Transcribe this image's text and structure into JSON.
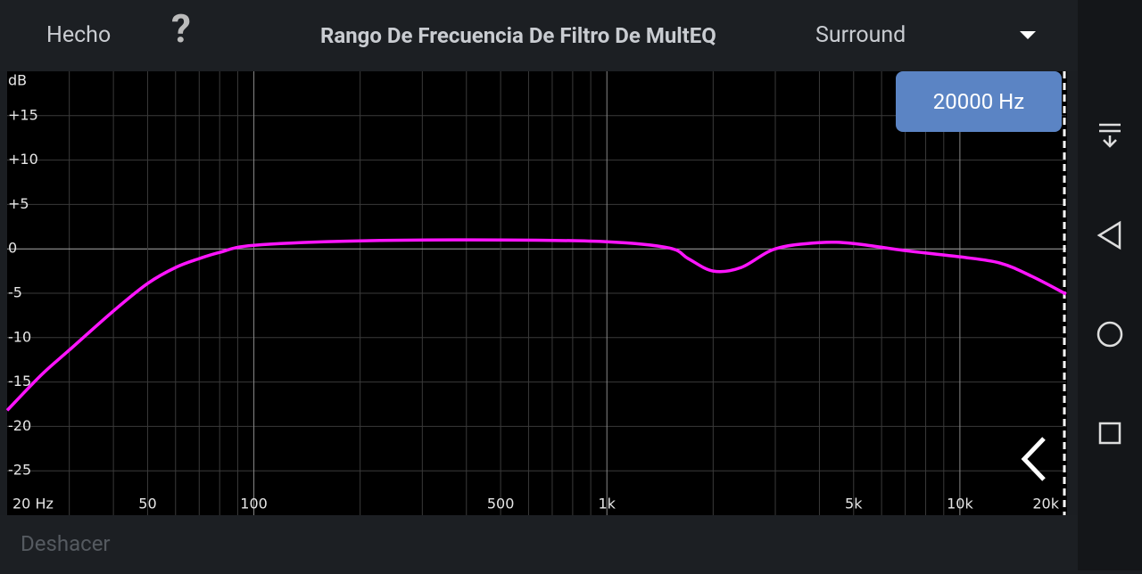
{
  "header": {
    "done": "Hecho",
    "help": "?",
    "title": "Rango De Frecuencia De Filtro De MultEQ",
    "channel": "Surround"
  },
  "frequency_button": "20000 Hz",
  "footer": {
    "undo": "Deshacer"
  },
  "chart_data": {
    "type": "line",
    "xscale": "log",
    "ylabel": "dB",
    "x": [
      20,
      25,
      30,
      40,
      50,
      60,
      70,
      80,
      100,
      200,
      500,
      1000,
      1500,
      1700,
      2000,
      2400,
      3000,
      4000,
      5000,
      7000,
      10000,
      13000,
      16000,
      20000
    ],
    "series": [
      {
        "color": "#ff14ff",
        "values": [
          -18.2,
          -14.2,
          -11.4,
          -7,
          -3.9,
          -2.1,
          -1.1,
          -0.4,
          0.4,
          0.9,
          1.0,
          0.8,
          0.1,
          -1.1,
          -2.5,
          -2.1,
          0,
          0.7,
          0.6,
          -0.2,
          -0.9,
          -1.6,
          -3.1,
          -5.1
        ]
      }
    ],
    "xlim": [
      20,
      20000
    ],
    "ylim": [
      -30,
      20
    ],
    "xticks": [
      {
        "value": 20,
        "label": "20 Hz"
      },
      50,
      100,
      500,
      {
        "value": 1000,
        "label": "1k"
      },
      {
        "value": 5000,
        "label": "5k"
      },
      {
        "value": 10000,
        "label": "10k"
      },
      {
        "value": 20000,
        "label": "20k"
      }
    ],
    "xminor": [
      30,
      40,
      60,
      70,
      80,
      90,
      200,
      300,
      400,
      600,
      700,
      800,
      900,
      2000,
      3000,
      4000,
      6000,
      7000,
      8000,
      9000
    ],
    "yticks": [
      {
        "value": 15,
        "label": "+15"
      },
      {
        "value": 10,
        "label": "+10"
      },
      {
        "value": 5,
        "label": "+5"
      },
      0,
      -5,
      -10,
      -15,
      -20,
      -25
    ],
    "grid": true
  }
}
